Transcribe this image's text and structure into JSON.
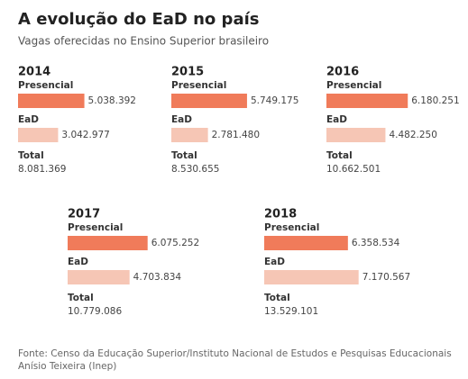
{
  "title": "A evolução do EaD no país",
  "subtitle": "Vagas oferecidas no Ensino Superior brasileiro",
  "source": [
    "Fonte: Censo da Educação Superior/Instituto Nacional de Estudos e Pesquisas Educacionais",
    "Anísio Teixeira (Inep)"
  ],
  "chart_data": [
    {
      "type": "bar",
      "title": "2014",
      "categories": [
        "Presencial",
        "EaD"
      ],
      "values": [
        5038392,
        3042977
      ],
      "value_labels": [
        "5.038.392",
        "3.042.977"
      ],
      "colors": [
        "#f07b5a",
        "#f6c6b5"
      ],
      "total": {
        "label": "Total",
        "value": 8081369,
        "value_label": "8.081.369"
      }
    },
    {
      "type": "bar",
      "title": "2015",
      "categories": [
        "Presencial",
        "EaD"
      ],
      "values": [
        5749175,
        2781480
      ],
      "value_labels": [
        "5.749.175",
        "2.781.480"
      ],
      "colors": [
        "#f07b5a",
        "#f6c6b5"
      ],
      "total": {
        "label": "Total",
        "value": 8530655,
        "value_label": "8.530.655"
      }
    },
    {
      "type": "bar",
      "title": "2016",
      "categories": [
        "Presencial",
        "EaD"
      ],
      "values": [
        6180251,
        4482250
      ],
      "value_labels": [
        "6.180.251",
        "4.482.250"
      ],
      "colors": [
        "#f07b5a",
        "#f6c6b5"
      ],
      "total": {
        "label": "Total",
        "value": 10662501,
        "value_label": "10.662.501"
      }
    },
    {
      "type": "bar",
      "title": "2017",
      "categories": [
        "Presencial",
        "EaD"
      ],
      "values": [
        6075252,
        4703834
      ],
      "value_labels": [
        "6.075.252",
        "4.703.834"
      ],
      "colors": [
        "#f07b5a",
        "#f6c6b5"
      ],
      "total": {
        "label": "Total",
        "value": 10779086,
        "value_label": "10.779.086"
      }
    },
    {
      "type": "bar",
      "title": "2018",
      "categories": [
        "Presencial",
        "EaD"
      ],
      "values": [
        6358534,
        7170567
      ],
      "value_labels": [
        "6.358.534",
        "7.170.567"
      ],
      "colors": [
        "#f07b5a",
        "#f6c6b5"
      ],
      "total": {
        "label": "Total",
        "value": 13529101,
        "value_label": "13.529.101"
      }
    }
  ]
}
